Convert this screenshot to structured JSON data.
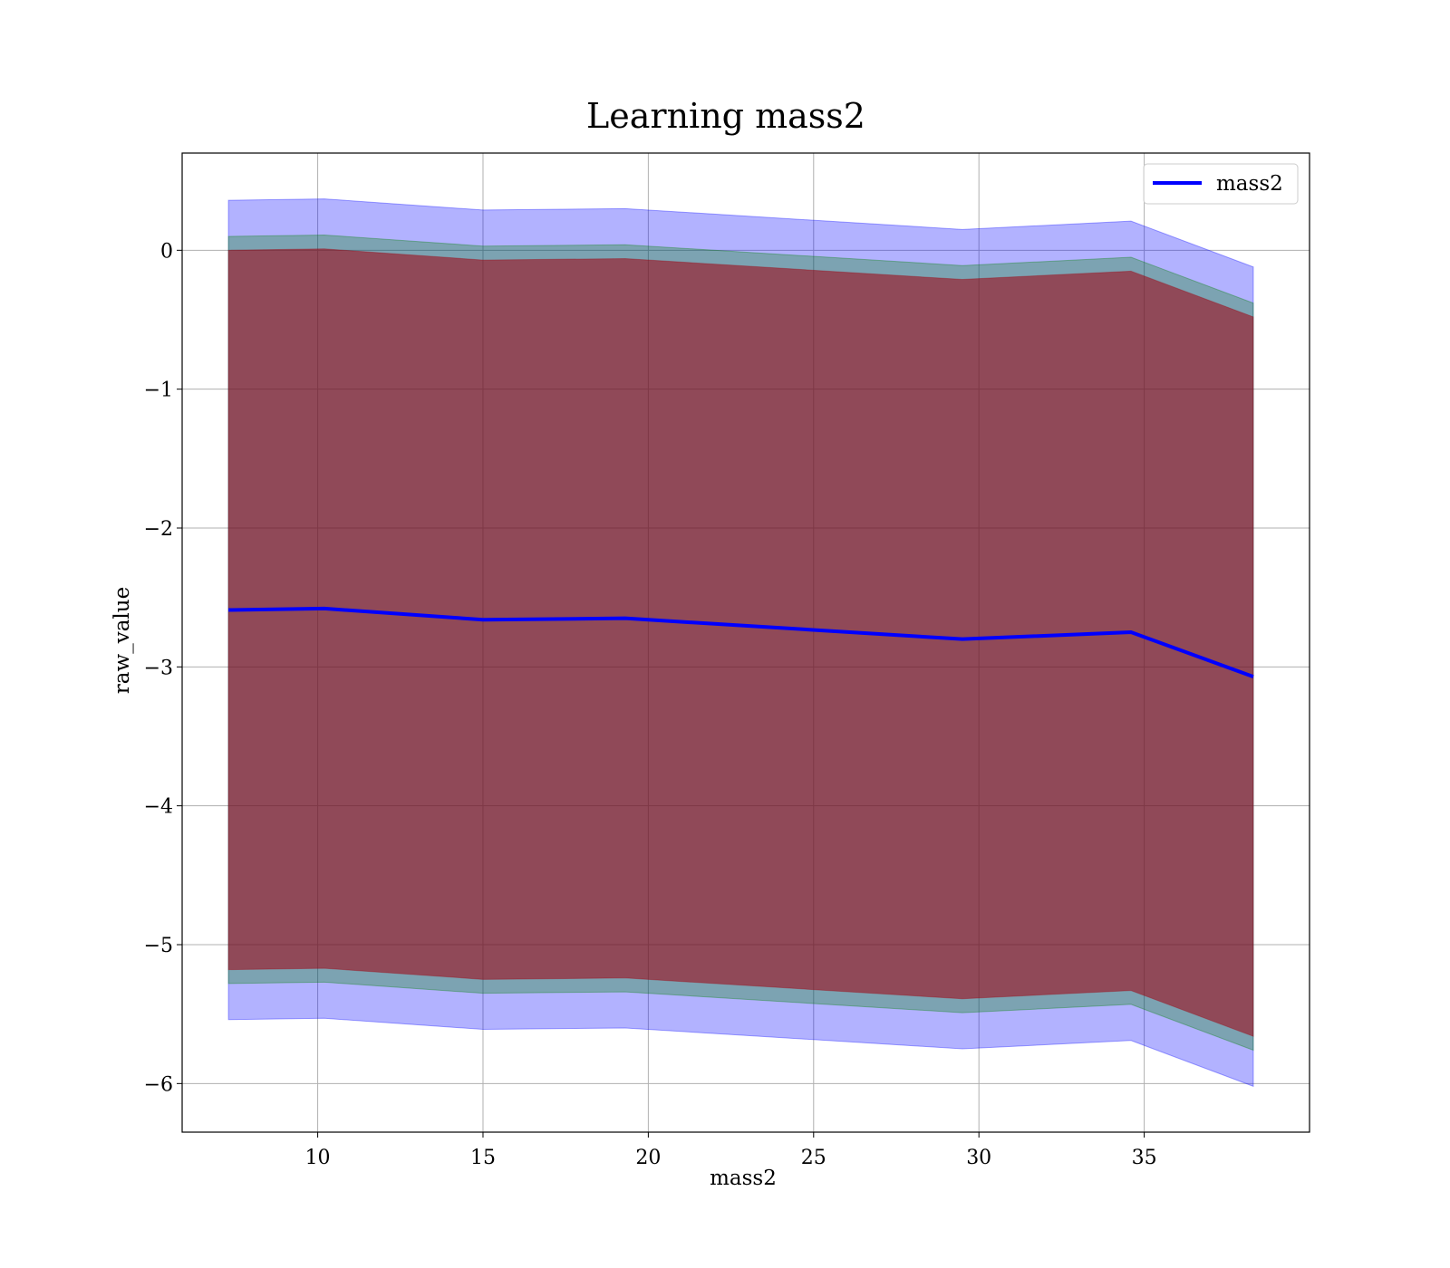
{
  "chart_data": {
    "type": "area",
    "title": "Learning mass2",
    "xlabel": "mass2",
    "ylabel": "raw_value",
    "xlim": [
      5.9,
      40.0
    ],
    "ylim": [
      -6.35,
      0.7
    ],
    "xticks": [
      10,
      15,
      20,
      25,
      30,
      35
    ],
    "xtick_labels": [
      "10",
      "15",
      "20",
      "25",
      "30",
      "35"
    ],
    "yticks": [
      0,
      -1,
      -2,
      -3,
      -4,
      -5,
      -6
    ],
    "ytick_labels": [
      "0",
      "−1",
      "−2",
      "−3",
      "−4",
      "−5",
      "−6"
    ],
    "grid": true,
    "legend_placement": "top-right",
    "x": [
      7.3,
      10.2,
      15.0,
      19.3,
      29.5,
      34.6,
      38.3
    ],
    "series": [
      {
        "name": "mass2",
        "color": "#0000ff",
        "values": [
          -2.59,
          -2.58,
          -2.66,
          -2.65,
          -2.8,
          -2.75,
          -3.07
        ]
      }
    ],
    "bands": [
      {
        "color": "#0000ff",
        "opacity": 0.3,
        "upper": [
          0.36,
          0.37,
          0.29,
          0.3,
          0.15,
          0.21,
          -0.12
        ],
        "lower": [
          -5.54,
          -5.53,
          -5.61,
          -5.6,
          -5.75,
          -5.69,
          -6.02
        ]
      },
      {
        "color": "#008000",
        "opacity": 0.3,
        "upper": [
          0.1,
          0.11,
          0.03,
          0.04,
          -0.11,
          -0.05,
          -0.38
        ],
        "lower": [
          -5.28,
          -5.27,
          -5.35,
          -5.34,
          -5.49,
          -5.43,
          -5.76
        ]
      },
      {
        "color": "#a0000f",
        "opacity": 0.55,
        "upper": [
          0.0,
          0.01,
          -0.07,
          -0.06,
          -0.21,
          -0.15,
          -0.48
        ],
        "lower": [
          -5.18,
          -5.17,
          -5.25,
          -5.24,
          -5.39,
          -5.33,
          -5.66
        ]
      }
    ]
  }
}
